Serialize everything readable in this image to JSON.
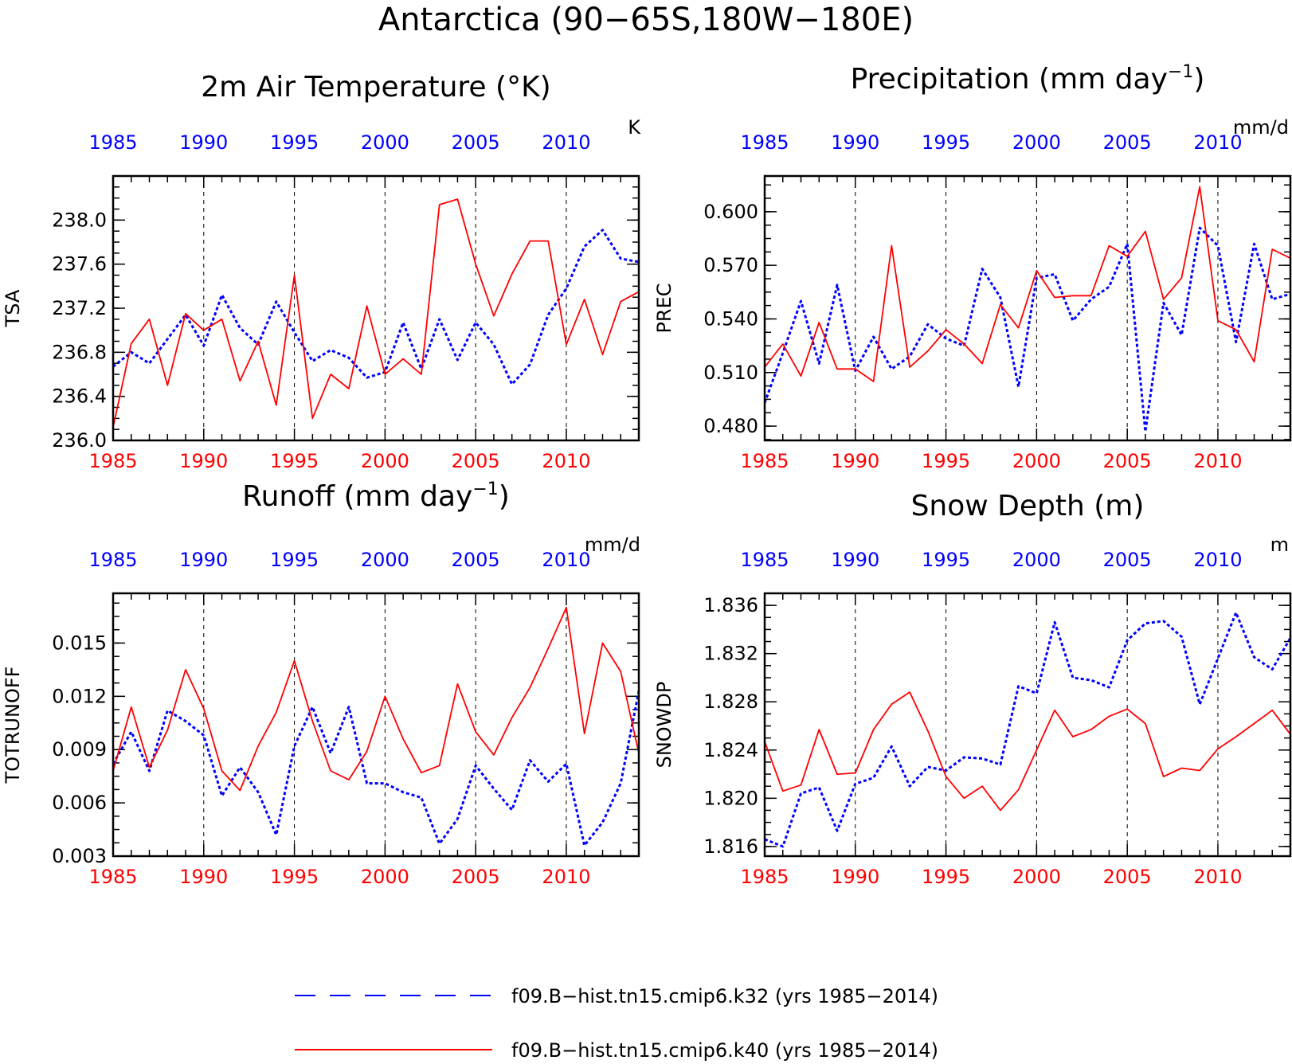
{
  "figure": {
    "title": "Antarctica (90−65S,180W−180E)"
  },
  "legend": {
    "entries": [
      {
        "label": "f09.B−hist.tn15.cmip6.k32 (yrs 1985−2014)",
        "color": "#0000ff",
        "style": "dashed"
      },
      {
        "label": "f09.B−hist.tn15.cmip6.k40 (yrs 1985−2014)",
        "color": "#ff0000",
        "style": "solid"
      }
    ]
  },
  "colors": {
    "k32": "#0000ff",
    "k40": "#ff0000",
    "axis": "#000000"
  },
  "chart_data": [
    {
      "type": "line",
      "title": "2m Air Temperature (°K)",
      "ylabel": "TSA",
      "units": "K",
      "xlim": [
        1985,
        2014
      ],
      "ylim": [
        236.0,
        238.4
      ],
      "yticks": [
        "236.0",
        "236.4",
        "236.8",
        "237.2",
        "237.6",
        "238.0"
      ],
      "xticks": [
        "1985",
        "1990",
        "1995",
        "2000",
        "2005",
        "2010"
      ],
      "series": [
        {
          "name": "f09.B−hist.tn15.cmip6.k32 (yrs 1985−2014)",
          "style": "dashed",
          "values": [
            236.67,
            236.8,
            236.7,
            236.92,
            237.14,
            236.86,
            237.32,
            237.02,
            236.87,
            237.26,
            236.98,
            236.72,
            236.82,
            236.75,
            236.57,
            236.62,
            237.07,
            236.65,
            237.1,
            236.73,
            237.07,
            236.87,
            236.51,
            236.69,
            237.14,
            237.38,
            237.76,
            237.91,
            237.65,
            237.62
          ]
        },
        {
          "name": "f09.B−hist.tn15.cmip6.k40 (yrs 1985−2014)",
          "style": "solid",
          "values": [
            236.12,
            236.88,
            237.1,
            236.5,
            237.15,
            237.0,
            237.1,
            236.54,
            236.9,
            236.32,
            237.5,
            236.2,
            236.6,
            236.47,
            237.22,
            236.6,
            236.74,
            236.6,
            238.14,
            238.19,
            237.6,
            237.13,
            237.51,
            237.81,
            237.81,
            236.87,
            237.28,
            236.78,
            237.26,
            237.35
          ]
        }
      ]
    },
    {
      "type": "line",
      "title": "Precipitation (mm day",
      "title_sup": "−1",
      "title_end": ")",
      "ylabel": "PREC",
      "units": "mm/d",
      "xlim": [
        1985,
        2014
      ],
      "ylim": [
        0.472,
        0.62
      ],
      "yticks": [
        "0.480",
        "0.510",
        "0.540",
        "0.570",
        "0.600"
      ],
      "xticks": [
        "1985",
        "1990",
        "1995",
        "2000",
        "2005",
        "2010"
      ],
      "series": [
        {
          "name": "f09.B−hist.tn15.cmip6.k32 (yrs 1985−2014)",
          "style": "dashed",
          "values": [
            0.493,
            0.521,
            0.55,
            0.515,
            0.559,
            0.511,
            0.53,
            0.512,
            0.519,
            0.537,
            0.529,
            0.525,
            0.568,
            0.552,
            0.502,
            0.563,
            0.565,
            0.539,
            0.551,
            0.558,
            0.582,
            0.477,
            0.549,
            0.531,
            0.591,
            0.581,
            0.527,
            0.582,
            0.551,
            0.554
          ]
        },
        {
          "name": "f09.B−hist.tn15.cmip6.k40 (yrs 1985−2014)",
          "style": "solid",
          "values": [
            0.513,
            0.526,
            0.508,
            0.538,
            0.512,
            0.512,
            0.505,
            0.581,
            0.513,
            0.522,
            0.534,
            0.526,
            0.515,
            0.548,
            0.535,
            0.567,
            0.552,
            0.553,
            0.553,
            0.581,
            0.575,
            0.589,
            0.551,
            0.563,
            0.614,
            0.539,
            0.534,
            0.516,
            0.579,
            0.574
          ]
        }
      ]
    },
    {
      "type": "line",
      "title": "Runoff (mm day",
      "title_sup": "−1",
      "title_end": ")",
      "ylabel": "TOTRUNOFF",
      "units": "mm/d",
      "xlim": [
        1985,
        2014
      ],
      "ylim": [
        0.003,
        0.0178
      ],
      "yticks": [
        "0.003",
        "0.006",
        "0.009",
        "0.012",
        "0.015"
      ],
      "xticks": [
        "1985",
        "1990",
        "1995",
        "2000",
        "2005",
        "2010"
      ],
      "series": [
        {
          "name": "f09.B−hist.tn15.cmip6.k32 (yrs 1985−2014)",
          "style": "dashed",
          "values": [
            0.0082,
            0.01,
            0.0078,
            0.0112,
            0.0106,
            0.0098,
            0.0064,
            0.008,
            0.0066,
            0.0042,
            0.0092,
            0.0114,
            0.0088,
            0.0114,
            0.0071,
            0.0071,
            0.0066,
            0.0063,
            0.0037,
            0.0051,
            0.0081,
            0.0068,
            0.0056,
            0.0084,
            0.0072,
            0.0082,
            0.0036,
            0.0049,
            0.0071,
            0.0123
          ]
        },
        {
          "name": "f09.B−hist.tn15.cmip6.k40 (yrs 1985−2014)",
          "style": "solid",
          "values": [
            0.0078,
            0.0114,
            0.008,
            0.0101,
            0.0135,
            0.0113,
            0.0078,
            0.0067,
            0.0092,
            0.0111,
            0.014,
            0.0106,
            0.0078,
            0.0073,
            0.0089,
            0.012,
            0.0096,
            0.0077,
            0.0081,
            0.0127,
            0.01,
            0.0087,
            0.0108,
            0.0125,
            0.0147,
            0.017,
            0.0099,
            0.015,
            0.0134,
            0.0088
          ]
        }
      ]
    },
    {
      "type": "line",
      "title": "Snow Depth (m)",
      "ylabel": "SNOWDP",
      "units": "m",
      "xlim": [
        1985,
        2014
      ],
      "ylim": [
        1.8152,
        1.837
      ],
      "yticks": [
        "1.816",
        "1.820",
        "1.824",
        "1.828",
        "1.832",
        "1.836"
      ],
      "xticks": [
        "1985",
        "1990",
        "1995",
        "2000",
        "2005",
        "2010"
      ],
      "series": [
        {
          "name": "f09.B−hist.tn15.cmip6.k32 (yrs 1985−2014)",
          "style": "dashed",
          "values": [
            1.8166,
            1.816,
            1.8204,
            1.8209,
            1.8173,
            1.8212,
            1.8217,
            1.8243,
            1.821,
            1.8226,
            1.8223,
            1.8234,
            1.8233,
            1.8228,
            1.8293,
            1.8287,
            1.8346,
            1.83,
            1.8298,
            1.8292,
            1.8331,
            1.8345,
            1.8347,
            1.8334,
            1.8278,
            1.8316,
            1.8354,
            1.8317,
            1.8307,
            1.8333
          ]
        },
        {
          "name": "f09.B−hist.tn15.cmip6.k40 (yrs 1985−2014)",
          "style": "solid",
          "values": [
            1.8247,
            1.8206,
            1.8211,
            1.8257,
            1.822,
            1.8221,
            1.8257,
            1.8278,
            1.8288,
            1.8256,
            1.8218,
            1.82,
            1.821,
            1.819,
            1.8207,
            1.824,
            1.8273,
            1.8251,
            1.8257,
            1.8268,
            1.8274,
            1.8262,
            1.8218,
            1.8225,
            1.8223,
            1.8241,
            1.8251,
            1.8262,
            1.8273,
            1.8253
          ]
        }
      ]
    }
  ]
}
